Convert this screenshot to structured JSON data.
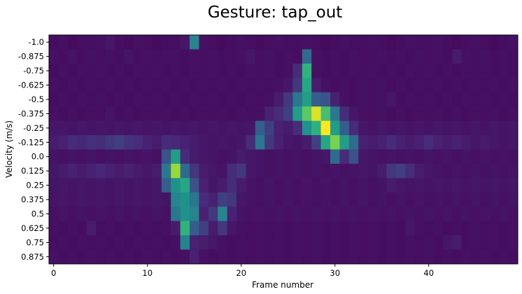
{
  "chart_data": {
    "type": "heatmap",
    "title": "Gesture: tap_out",
    "xlabel": "Frame number",
    "ylabel": "Velocity (m/s)",
    "x_ticks": [
      0,
      10,
      20,
      30,
      40
    ],
    "x_tick_labels": [
      "0",
      "10",
      "20",
      "30",
      "40"
    ],
    "y_categories": [
      "-1.0",
      "-0.875",
      "-0.75",
      "-0.625",
      "-0.5",
      "-0.375",
      "-0.25",
      "-0.125",
      "0.0",
      "0.125",
      "0.25",
      "0.375",
      "0.5",
      "0.625",
      "0.75",
      "0.875"
    ],
    "x_range": [
      0,
      49
    ],
    "colormap": "viridis",
    "values": [
      [
        0.05,
        0.06,
        0.04,
        0.05,
        0.05,
        0.06,
        0.08,
        0.05,
        0.04,
        0.06,
        0.05,
        0.04,
        0.05,
        0.05,
        0.08,
        0.45,
        0.06,
        0.05,
        0.04,
        0.05,
        0.06,
        0.05,
        0.04,
        0.05,
        0.06,
        0.05,
        0.05,
        0.06,
        0.05,
        0.04,
        0.05,
        0.06,
        0.05,
        0.05,
        0.06,
        0.05,
        0.04,
        0.05,
        0.06,
        0.05,
        0.05,
        0.06,
        0.05,
        0.04,
        0.05,
        0.06,
        0.05,
        0.04,
        0.05,
        0.06
      ],
      [
        0.06,
        0.05,
        0.07,
        0.05,
        0.06,
        0.05,
        0.06,
        0.05,
        0.07,
        0.05,
        0.06,
        0.05,
        0.06,
        0.06,
        0.05,
        0.06,
        0.05,
        0.06,
        0.05,
        0.05,
        0.06,
        0.08,
        0.05,
        0.06,
        0.05,
        0.06,
        0.05,
        0.35,
        0.06,
        0.05,
        0.06,
        0.05,
        0.06,
        0.05,
        0.05,
        0.06,
        0.05,
        0.06,
        0.05,
        0.06,
        0.05,
        0.06,
        0.05,
        0.1,
        0.06,
        0.05,
        0.06,
        0.05,
        0.06,
        0.05
      ],
      [
        0.05,
        0.06,
        0.05,
        0.06,
        0.05,
        0.06,
        0.05,
        0.06,
        0.05,
        0.06,
        0.05,
        0.06,
        0.05,
        0.06,
        0.05,
        0.06,
        0.05,
        0.06,
        0.05,
        0.06,
        0.05,
        0.06,
        0.05,
        0.06,
        0.05,
        0.06,
        0.15,
        0.65,
        0.06,
        0.05,
        0.06,
        0.05,
        0.06,
        0.05,
        0.06,
        0.05,
        0.06,
        0.05,
        0.06,
        0.05,
        0.06,
        0.05,
        0.06,
        0.05,
        0.06,
        0.05,
        0.06,
        0.05,
        0.06,
        0.05
      ],
      [
        0.06,
        0.05,
        0.06,
        0.05,
        0.06,
        0.05,
        0.06,
        0.05,
        0.06,
        0.05,
        0.06,
        0.05,
        0.06,
        0.05,
        0.06,
        0.05,
        0.06,
        0.05,
        0.06,
        0.05,
        0.06,
        0.05,
        0.06,
        0.05,
        0.06,
        0.08,
        0.18,
        0.6,
        0.1,
        0.06,
        0.05,
        0.06,
        0.05,
        0.06,
        0.05,
        0.06,
        0.05,
        0.06,
        0.05,
        0.06,
        0.05,
        0.06,
        0.05,
        0.06,
        0.05,
        0.06,
        0.05,
        0.06,
        0.05,
        0.06
      ],
      [
        0.05,
        0.06,
        0.05,
        0.06,
        0.05,
        0.06,
        0.05,
        0.06,
        0.05,
        0.06,
        0.05,
        0.06,
        0.05,
        0.06,
        0.05,
        0.06,
        0.05,
        0.06,
        0.05,
        0.06,
        0.05,
        0.06,
        0.05,
        0.06,
        0.1,
        0.18,
        0.4,
        0.55,
        0.3,
        0.25,
        0.12,
        0.06,
        0.05,
        0.06,
        0.05,
        0.06,
        0.08,
        0.05,
        0.06,
        0.05,
        0.06,
        0.05,
        0.06,
        0.05,
        0.06,
        0.05,
        0.06,
        0.05,
        0.06,
        0.05
      ],
      [
        0.06,
        0.05,
        0.06,
        0.05,
        0.06,
        0.05,
        0.07,
        0.05,
        0.06,
        0.05,
        0.06,
        0.05,
        0.06,
        0.05,
        0.06,
        0.05,
        0.06,
        0.05,
        0.06,
        0.05,
        0.06,
        0.05,
        0.06,
        0.12,
        0.15,
        0.2,
        0.55,
        0.75,
        0.95,
        0.7,
        0.4,
        0.15,
        0.08,
        0.06,
        0.05,
        0.06,
        0.05,
        0.06,
        0.05,
        0.06,
        0.05,
        0.06,
        0.05,
        0.06,
        0.05,
        0.06,
        0.05,
        0.06,
        0.05,
        0.06
      ],
      [
        0.08,
        0.08,
        0.07,
        0.08,
        0.07,
        0.08,
        0.07,
        0.08,
        0.07,
        0.08,
        0.07,
        0.08,
        0.07,
        0.08,
        0.07,
        0.08,
        0.07,
        0.08,
        0.07,
        0.08,
        0.07,
        0.08,
        0.3,
        0.2,
        0.12,
        0.1,
        0.15,
        0.5,
        0.65,
        1.0,
        0.55,
        0.3,
        0.15,
        0.08,
        0.07,
        0.08,
        0.07,
        0.08,
        0.07,
        0.08,
        0.07,
        0.08,
        0.07,
        0.08,
        0.07,
        0.08,
        0.07,
        0.08,
        0.07,
        0.08
      ],
      [
        0.1,
        0.12,
        0.15,
        0.14,
        0.16,
        0.15,
        0.18,
        0.2,
        0.17,
        0.15,
        0.12,
        0.1,
        0.15,
        0.14,
        0.12,
        0.1,
        0.08,
        0.07,
        0.08,
        0.07,
        0.08,
        0.15,
        0.4,
        0.18,
        0.12,
        0.08,
        0.07,
        0.1,
        0.2,
        0.6,
        0.8,
        0.55,
        0.35,
        0.12,
        0.1,
        0.12,
        0.15,
        0.12,
        0.1,
        0.12,
        0.15,
        0.12,
        0.1,
        0.12,
        0.1,
        0.08,
        0.1,
        0.08,
        0.07,
        0.08
      ],
      [
        0.07,
        0.06,
        0.07,
        0.06,
        0.07,
        0.06,
        0.07,
        0.06,
        0.07,
        0.06,
        0.07,
        0.06,
        0.25,
        0.55,
        0.15,
        0.1,
        0.08,
        0.07,
        0.06,
        0.07,
        0.1,
        0.08,
        0.07,
        0.06,
        0.07,
        0.06,
        0.07,
        0.06,
        0.07,
        0.08,
        0.35,
        0.15,
        0.25,
        0.08,
        0.07,
        0.06,
        0.07,
        0.06,
        0.07,
        0.06,
        0.07,
        0.06,
        0.07,
        0.06,
        0.07,
        0.06,
        0.07,
        0.06,
        0.07,
        0.06
      ],
      [
        0.08,
        0.1,
        0.12,
        0.1,
        0.12,
        0.14,
        0.12,
        0.1,
        0.12,
        0.1,
        0.08,
        0.1,
        0.4,
        0.85,
        0.35,
        0.18,
        0.1,
        0.08,
        0.07,
        0.15,
        0.18,
        0.08,
        0.07,
        0.06,
        0.07,
        0.06,
        0.07,
        0.06,
        0.07,
        0.06,
        0.07,
        0.06,
        0.07,
        0.08,
        0.07,
        0.1,
        0.18,
        0.2,
        0.15,
        0.1,
        0.08,
        0.07,
        0.06,
        0.07,
        0.06,
        0.07,
        0.06,
        0.07,
        0.06,
        0.07
      ],
      [
        0.07,
        0.08,
        0.07,
        0.08,
        0.07,
        0.08,
        0.07,
        0.08,
        0.07,
        0.08,
        0.07,
        0.08,
        0.3,
        0.5,
        0.6,
        0.25,
        0.12,
        0.08,
        0.1,
        0.15,
        0.1,
        0.07,
        0.06,
        0.07,
        0.06,
        0.07,
        0.06,
        0.07,
        0.06,
        0.07,
        0.06,
        0.07,
        0.06,
        0.07,
        0.06,
        0.07,
        0.1,
        0.08,
        0.07,
        0.08,
        0.07,
        0.08,
        0.07,
        0.08,
        0.07,
        0.08,
        0.07,
        0.08,
        0.07,
        0.08
      ],
      [
        0.07,
        0.08,
        0.07,
        0.08,
        0.07,
        0.08,
        0.07,
        0.08,
        0.07,
        0.08,
        0.07,
        0.08,
        0.07,
        0.45,
        0.5,
        0.4,
        0.15,
        0.12,
        0.2,
        0.18,
        0.08,
        0.07,
        0.06,
        0.07,
        0.06,
        0.07,
        0.06,
        0.07,
        0.06,
        0.07,
        0.06,
        0.07,
        0.06,
        0.07,
        0.06,
        0.07,
        0.06,
        0.07,
        0.06,
        0.07,
        0.06,
        0.07,
        0.06,
        0.07,
        0.06,
        0.07,
        0.06,
        0.07,
        0.06,
        0.07
      ],
      [
        0.06,
        0.07,
        0.06,
        0.07,
        0.06,
        0.07,
        0.06,
        0.07,
        0.06,
        0.07,
        0.06,
        0.07,
        0.06,
        0.4,
        0.5,
        0.45,
        0.12,
        0.18,
        0.45,
        0.12,
        0.07,
        0.06,
        0.07,
        0.06,
        0.07,
        0.06,
        0.07,
        0.06,
        0.07,
        0.06,
        0.07,
        0.06,
        0.07,
        0.06,
        0.07,
        0.06,
        0.07,
        0.06,
        0.07,
        0.06,
        0.07,
        0.06,
        0.07,
        0.06,
        0.07,
        0.06,
        0.07,
        0.06,
        0.07,
        0.06
      ],
      [
        0.06,
        0.05,
        0.06,
        0.05,
        0.1,
        0.05,
        0.06,
        0.05,
        0.06,
        0.05,
        0.06,
        0.05,
        0.06,
        0.1,
        0.65,
        0.3,
        0.2,
        0.1,
        0.18,
        0.08,
        0.06,
        0.05,
        0.06,
        0.05,
        0.06,
        0.05,
        0.06,
        0.05,
        0.06,
        0.05,
        0.06,
        0.05,
        0.06,
        0.05,
        0.06,
        0.05,
        0.06,
        0.05,
        0.08,
        0.06,
        0.05,
        0.06,
        0.05,
        0.06,
        0.05,
        0.06,
        0.05,
        0.06,
        0.05,
        0.06
      ],
      [
        0.05,
        0.06,
        0.05,
        0.06,
        0.05,
        0.06,
        0.05,
        0.06,
        0.05,
        0.06,
        0.05,
        0.06,
        0.05,
        0.06,
        0.45,
        0.12,
        0.1,
        0.08,
        0.06,
        0.05,
        0.06,
        0.05,
        0.06,
        0.05,
        0.06,
        0.05,
        0.06,
        0.05,
        0.06,
        0.05,
        0.06,
        0.05,
        0.06,
        0.05,
        0.06,
        0.05,
        0.06,
        0.05,
        0.06,
        0.05,
        0.06,
        0.05,
        0.08,
        0.1,
        0.05,
        0.06,
        0.05,
        0.06,
        0.05,
        0.06
      ],
      [
        0.06,
        0.05,
        0.06,
        0.05,
        0.06,
        0.05,
        0.06,
        0.05,
        0.06,
        0.05,
        0.06,
        0.05,
        0.06,
        0.05,
        0.06,
        0.12,
        0.06,
        0.05,
        0.06,
        0.05,
        0.06,
        0.05,
        0.06,
        0.05,
        0.06,
        0.05,
        0.06,
        0.05,
        0.06,
        0.05,
        0.06,
        0.05,
        0.06,
        0.05,
        0.06,
        0.05,
        0.06,
        0.05,
        0.06,
        0.05,
        0.06,
        0.05,
        0.06,
        0.05,
        0.06,
        0.05,
        0.06,
        0.05,
        0.06,
        0.05
      ]
    ]
  }
}
